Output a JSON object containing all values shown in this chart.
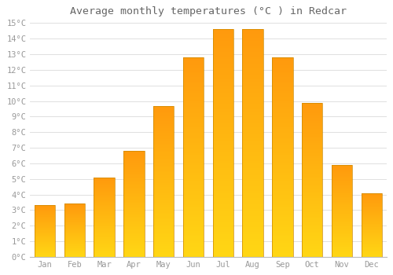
{
  "months": [
    "Jan",
    "Feb",
    "Mar",
    "Apr",
    "May",
    "Jun",
    "Jul",
    "Aug",
    "Sep",
    "Oct",
    "Nov",
    "Dec"
  ],
  "values": [
    3.3,
    3.4,
    5.1,
    6.8,
    9.7,
    12.8,
    14.6,
    14.6,
    12.8,
    9.9,
    5.9,
    4.1
  ],
  "title": "Average monthly temperatures (°C ) in Redcar",
  "ylim": [
    0,
    15
  ],
  "ytick_step": 1,
  "background_color": "#ffffff",
  "grid_color": "#e0e0e0",
  "text_color": "#999999",
  "title_color": "#666666",
  "title_fontsize": 9.5,
  "tick_fontsize": 7.5,
  "bar_color_bottom": "#FFD020",
  "bar_color_top": "#FFA020",
  "bar_border_color": "#CC8800",
  "bar_width": 0.7
}
